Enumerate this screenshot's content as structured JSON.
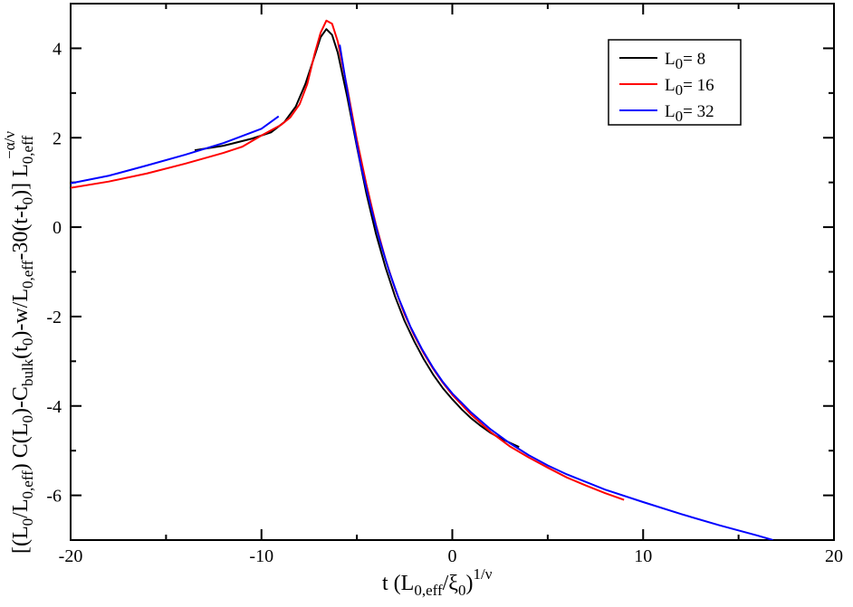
{
  "chart_data": {
    "type": "line",
    "title": "",
    "xlim": [
      -20,
      20
    ],
    "ylim": [
      -7,
      5
    ],
    "x_ticks": [
      -20,
      -10,
      0,
      10,
      20
    ],
    "y_ticks": [
      -6,
      -4,
      -2,
      0,
      2,
      4
    ],
    "x_tick_labels": [
      "-20",
      "-10",
      "0",
      "10",
      "20"
    ],
    "y_tick_labels": [
      "-6",
      "-4",
      "-2",
      "0",
      "2",
      "4"
    ],
    "grid": false,
    "legend_position": "top-right",
    "xlabel": {
      "t": "t (L",
      "s1": "0,eff",
      "t2": "/ξ",
      "s2": "0",
      "t3": ")",
      "sup": "1/ν"
    },
    "ylabel": {
      "t1": "[(L",
      "s1": "0",
      "t2": "/L",
      "s2": "0,eff",
      "t3": ") C(L",
      "s3": "0",
      "t4": ")-C",
      "s4": "bulk",
      "t5": "(t",
      "s5": "0",
      "t6": ")-w/L",
      "s6": "0,eff",
      "t7": "-30(t-t",
      "s7": "0",
      "t8": ")] L",
      "s8": "0,eff",
      "sup8": "−α/ν"
    },
    "series": [
      {
        "name": "L0= 8",
        "label_main": "L",
        "label_sub": "0",
        "label_rest": "= 8",
        "color": "#000000",
        "points": [
          [
            -13.5,
            1.72
          ],
          [
            -12.0,
            1.82
          ],
          [
            -10.5,
            1.98
          ],
          [
            -9.5,
            2.12
          ],
          [
            -8.8,
            2.35
          ],
          [
            -8.2,
            2.7
          ],
          [
            -7.7,
            3.2
          ],
          [
            -7.2,
            3.85
          ],
          [
            -6.9,
            4.25
          ],
          [
            -6.6,
            4.43
          ],
          [
            -6.3,
            4.3
          ],
          [
            -6.0,
            3.9
          ],
          [
            -5.5,
            2.9
          ],
          [
            -5.0,
            1.8
          ],
          [
            -4.5,
            0.75
          ],
          [
            -4.0,
            -0.15
          ],
          [
            -3.5,
            -0.9
          ],
          [
            -3.0,
            -1.55
          ],
          [
            -2.5,
            -2.1
          ],
          [
            -2.0,
            -2.55
          ],
          [
            -1.5,
            -2.95
          ],
          [
            -1.0,
            -3.3
          ],
          [
            -0.5,
            -3.6
          ],
          [
            0.0,
            -3.85
          ],
          [
            0.5,
            -4.08
          ],
          [
            1.0,
            -4.28
          ],
          [
            1.5,
            -4.45
          ],
          [
            2.0,
            -4.6
          ],
          [
            2.5,
            -4.72
          ],
          [
            3.0,
            -4.82
          ],
          [
            3.5,
            -4.92
          ]
        ]
      },
      {
        "name": "L0= 16",
        "label_main": "L",
        "label_sub": "0",
        "label_rest": "= 16",
        "color": "#ff0000",
        "points": [
          [
            -20.0,
            0.88
          ],
          [
            -18.0,
            1.02
          ],
          [
            -16.0,
            1.2
          ],
          [
            -14.0,
            1.42
          ],
          [
            -12.0,
            1.66
          ],
          [
            -11.0,
            1.8
          ],
          [
            -10.0,
            2.05
          ],
          [
            -9.0,
            2.28
          ],
          [
            -8.5,
            2.45
          ],
          [
            -8.0,
            2.75
          ],
          [
            -7.6,
            3.2
          ],
          [
            -7.2,
            3.9
          ],
          [
            -6.9,
            4.35
          ],
          [
            -6.6,
            4.62
          ],
          [
            -6.3,
            4.55
          ],
          [
            -6.0,
            4.15
          ],
          [
            -5.5,
            3.1
          ],
          [
            -5.0,
            1.95
          ],
          [
            -4.5,
            0.95
          ],
          [
            -4.0,
            0.05
          ],
          [
            -3.5,
            -0.72
          ],
          [
            -3.0,
            -1.38
          ],
          [
            -2.5,
            -1.95
          ],
          [
            -2.0,
            -2.42
          ],
          [
            -1.5,
            -2.82
          ],
          [
            -1.0,
            -3.17
          ],
          [
            -0.5,
            -3.48
          ],
          [
            0.0,
            -3.75
          ],
          [
            1.0,
            -4.2
          ],
          [
            2.0,
            -4.58
          ],
          [
            3.0,
            -4.9
          ],
          [
            4.0,
            -5.15
          ],
          [
            5.0,
            -5.38
          ],
          [
            6.0,
            -5.6
          ],
          [
            7.0,
            -5.78
          ],
          [
            8.0,
            -5.95
          ],
          [
            9.0,
            -6.1
          ]
        ]
      },
      {
        "name": "L0= 32",
        "label_main": "L",
        "label_sub": "0",
        "label_rest": "= 32",
        "color": "#0000ff",
        "points": [
          [
            -20.0,
            0.98
          ],
          [
            -18.0,
            1.15
          ],
          [
            -16.0,
            1.38
          ],
          [
            -14.0,
            1.62
          ],
          [
            -12.0,
            1.88
          ],
          [
            -10.0,
            2.2
          ],
          [
            -9.1,
            2.48
          ],
          null,
          [
            -5.9,
            4.08
          ],
          [
            -5.6,
            3.3
          ],
          [
            -5.2,
            2.3
          ],
          [
            -4.8,
            1.4
          ],
          [
            -4.3,
            0.5
          ],
          [
            -3.8,
            -0.3
          ],
          [
            -3.3,
            -1.0
          ],
          [
            -2.8,
            -1.6
          ],
          [
            -2.2,
            -2.22
          ],
          [
            -1.6,
            -2.72
          ],
          [
            -1.0,
            -3.15
          ],
          [
            -0.5,
            -3.46
          ],
          [
            0.0,
            -3.72
          ],
          [
            1.0,
            -4.15
          ],
          [
            2.0,
            -4.52
          ],
          [
            3.0,
            -4.83
          ],
          [
            4.0,
            -5.1
          ],
          [
            5.0,
            -5.33
          ],
          [
            6.0,
            -5.53
          ],
          [
            8.0,
            -5.87
          ],
          [
            10.0,
            -6.15
          ],
          [
            12.0,
            -6.42
          ],
          [
            14.0,
            -6.67
          ],
          [
            16.0,
            -6.9
          ],
          [
            16.8,
            -7.0
          ]
        ]
      }
    ]
  }
}
